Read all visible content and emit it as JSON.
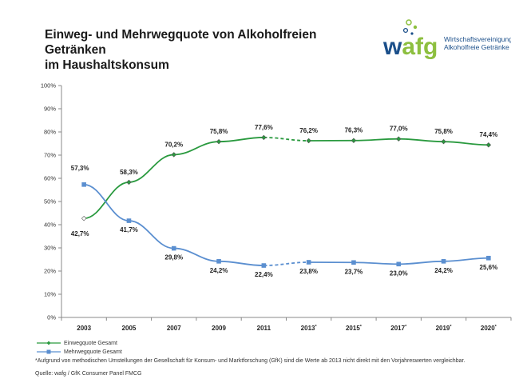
{
  "title": {
    "line1": "Einweg- und Mehrwegquote von Alkoholfreien Getränken",
    "line2": "im Haushaltskonsum"
  },
  "logo": {
    "wordmark": "wafg",
    "line1": "Wirtschaftsvereinigung",
    "line2": "Alkoholfreie Getränke",
    "colors": {
      "w": "#1b4f8a",
      "afg": "#8dbf3f",
      "dots": "#8dbf3f"
    }
  },
  "colors": {
    "einweg": "#2a9a3f",
    "mehrweg": "#5b8fd0",
    "axis": "#888888",
    "grid": "#d9d9d9"
  },
  "chart_data": {
    "type": "line",
    "categories": [
      "2003",
      "2005",
      "2007",
      "2009",
      "2011",
      "2013*",
      "2015*",
      "2017*",
      "2019*",
      "2020*"
    ],
    "ylim": [
      0,
      100
    ],
    "yticks": [
      "0%",
      "10%",
      "20%",
      "30%",
      "40%",
      "50%",
      "60%",
      "70%",
      "80%",
      "90%",
      "100%"
    ],
    "break_after_index": 4,
    "series": [
      {
        "name": "Einwegquote Gesamt",
        "values": [
          42.7,
          58.3,
          70.2,
          75.8,
          77.6,
          76.2,
          76.3,
          77.0,
          75.8,
          74.4
        ],
        "labels": [
          "42,7%",
          "58,3%",
          "70,2%",
          "75,8%",
          "77,6%",
          "76,2%",
          "76,3%",
          "77,0%",
          "75,8%",
          "74,4%"
        ],
        "marker": "diamond"
      },
      {
        "name": "Mehrwegquote Gesamt",
        "values": [
          57.3,
          41.7,
          29.8,
          24.2,
          22.4,
          23.8,
          23.7,
          23.0,
          24.2,
          25.6
        ],
        "labels": [
          "57,3%",
          "41,7%",
          "29,8%",
          "24,2%",
          "22,4%",
          "23,8%",
          "23,7%",
          "23,0%",
          "24,2%",
          "25,6%"
        ],
        "marker": "square"
      }
    ]
  },
  "footnote": "*Aufgrund von methodischen Umstellungen der Gesellschaft für Konsum- und Marktforschung (GfK) sind die Werte ab 2013 nicht direkt mit den Vorjahreswerten vergleichbar.",
  "source": "Quelle: wafg / GfK Consumer Panel FMCG"
}
